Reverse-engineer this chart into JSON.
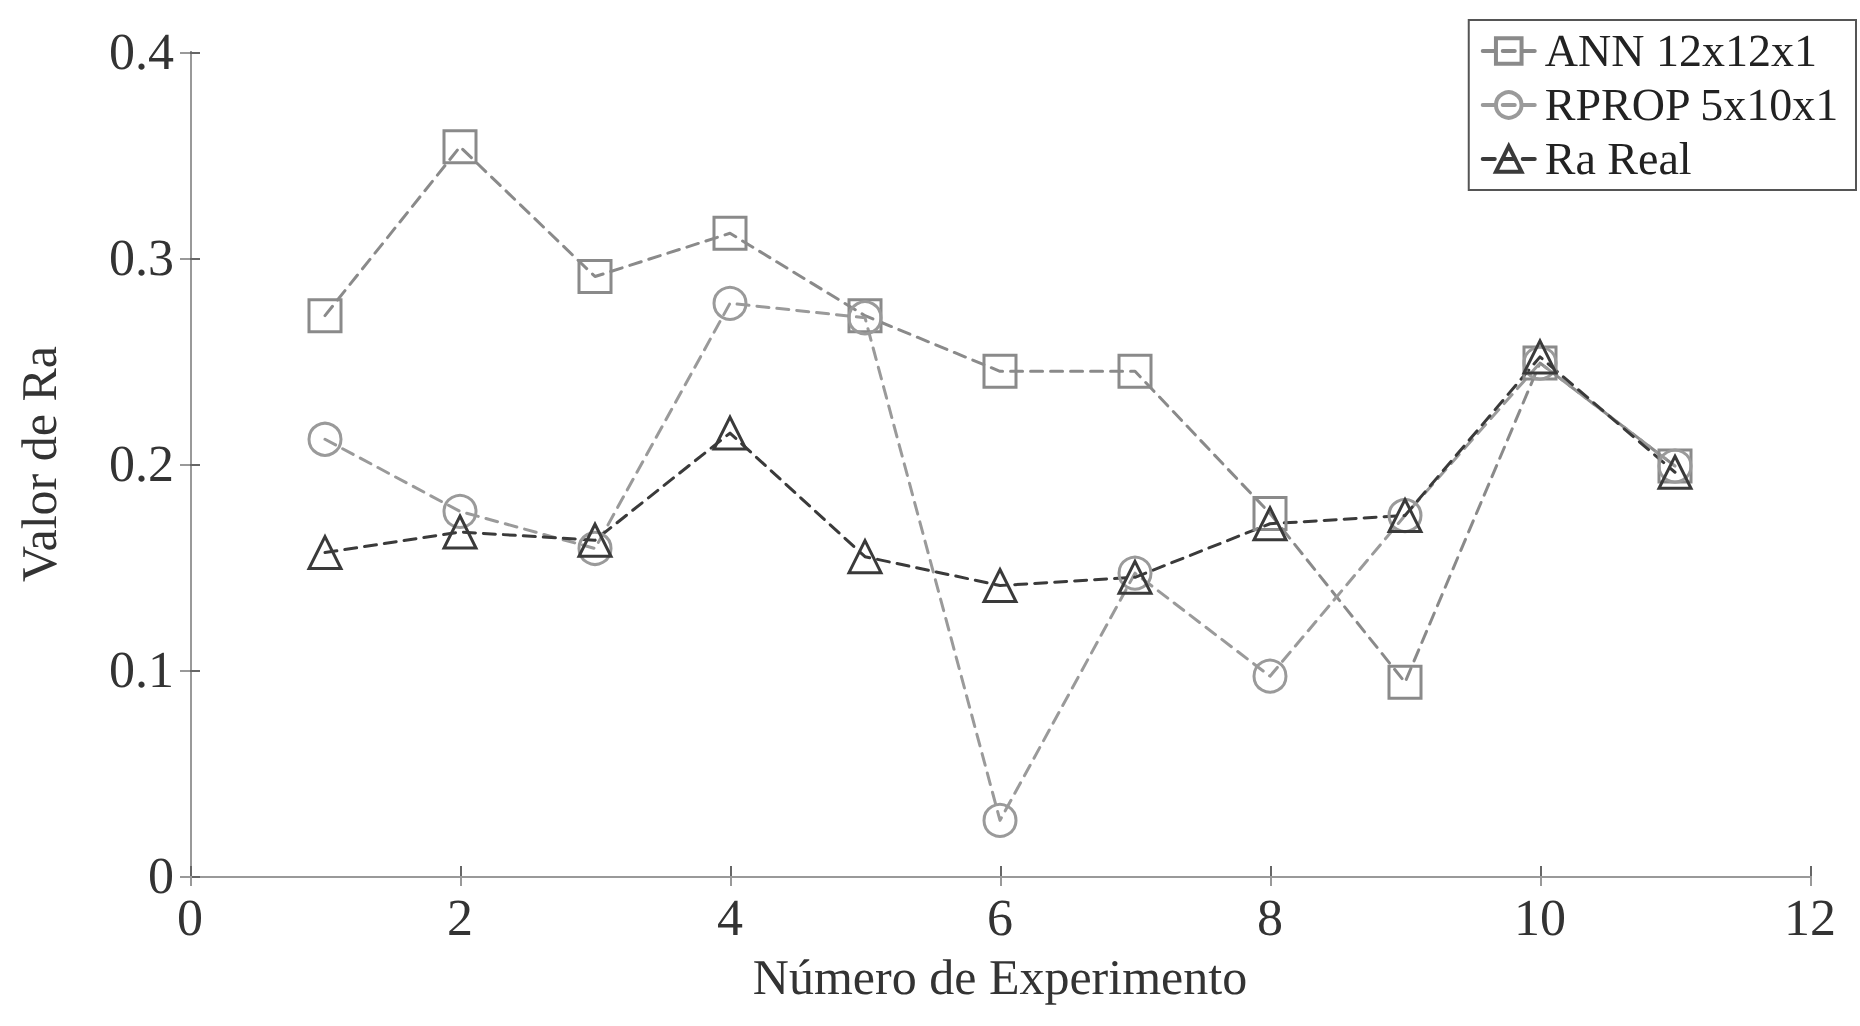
{
  "chart_data": {
    "type": "line",
    "xlabel": "Número de Experimento",
    "ylabel": "Valor de Ra",
    "x": [
      1,
      2,
      3,
      4,
      5,
      6,
      7,
      8,
      9,
      10,
      11
    ],
    "xlim": [
      0,
      12
    ],
    "xticks": [
      0,
      2,
      4,
      6,
      8,
      10,
      12
    ],
    "ylim": [
      0,
      0.4
    ],
    "yticks": [
      0,
      0.1,
      0.2,
      0.3,
      0.4
    ],
    "grid": false,
    "legend": "top right",
    "line_style": "dashed",
    "series": [
      {
        "name": "ANN 12x12x1",
        "color": "#8a8a8a",
        "marker": "square",
        "values": [
          0.272,
          0.354,
          0.291,
          0.312,
          0.272,
          0.245,
          0.245,
          0.176,
          0.094,
          0.249,
          0.199
        ]
      },
      {
        "name": "RPROP 5x10x1",
        "color": "#9a9a9a",
        "marker": "circle",
        "values": [
          0.212,
          0.177,
          0.159,
          0.278,
          0.271,
          0.027,
          0.147,
          0.097,
          0.175,
          0.249,
          0.199
        ]
      },
      {
        "name": "Ra Real",
        "color": "#3a3a3a",
        "marker": "triangle",
        "values": [
          0.157,
          0.167,
          0.163,
          0.215,
          0.155,
          0.141,
          0.145,
          0.171,
          0.175,
          0.252,
          0.196
        ]
      }
    ]
  }
}
